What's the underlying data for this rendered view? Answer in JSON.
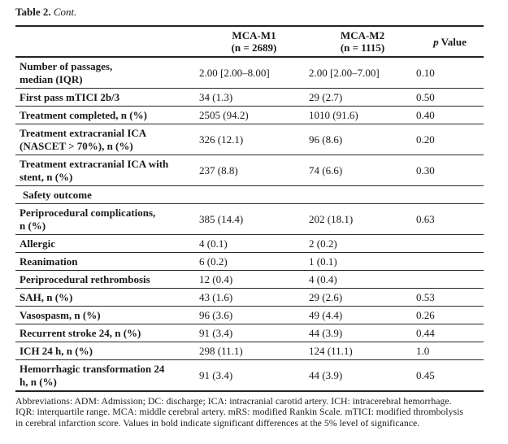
{
  "title": {
    "bold": "Table 2.",
    "italic": "Cont."
  },
  "colors": {
    "text": "#1a1a1a",
    "rule": "#232323",
    "background": "#ffffff"
  },
  "table": {
    "columns": {
      "label": "",
      "m1": "MCA-M1\n(n = 2689)",
      "m2": "MCA-M2\n(n = 1115)",
      "p_italic": "p",
      "p_rest": " Value"
    },
    "rows": [
      {
        "label": "Number of passages,\nmedian (IQR)",
        "m1": "2.00 [2.00–8.00]",
        "m2": "2.00 [2.00–7.00]",
        "p": "0.10"
      },
      {
        "label": "First pass mTICI 2b/3",
        "m1": "34 (1.3)",
        "m2": "29 (2.7)",
        "p": "0.50"
      },
      {
        "label": "Treatment completed, n (%)",
        "m1": "2505 (94.2)",
        "m2": "1010 (91.6)",
        "p": "0.40"
      },
      {
        "label": "Treatment extracranial ICA\n(NASCET > 70%), n (%)",
        "m1": "326 (12.1)",
        "m2": "96 (8.6)",
        "p": "0.20"
      },
      {
        "label": "Treatment extracranial ICA with\nstent, n (%)",
        "m1": "237 (8.8)",
        "m2": "74 (6.6)",
        "p": "0.30"
      },
      {
        "label": "Safety outcome",
        "m1": "",
        "m2": "",
        "p": "",
        "section": true
      },
      {
        "label": "Periprocedural complications,\nn (%)",
        "m1": "385 (14.4)",
        "m2": "202 (18.1)",
        "p": "0.63"
      },
      {
        "label": "Allergic",
        "m1": "4 (0.1)",
        "m2": "2 (0.2)",
        "p": ""
      },
      {
        "label": "Reanimation",
        "m1": "6 (0.2)",
        "m2": "1 (0.1)",
        "p": ""
      },
      {
        "label": "Periprocedural rethrombosis",
        "m1": "12 (0.4)",
        "m2": "4 (0.4)",
        "p": ""
      },
      {
        "label": "SAH, n (%)",
        "m1": "43 (1.6)",
        "m2": "29 (2.6)",
        "p": "0.53"
      },
      {
        "label": "Vasospasm, n (%)",
        "m1": "96 (3.6)",
        "m2": "49 (4.4)",
        "p": "0.26"
      },
      {
        "label": "Recurrent stroke 24, n (%)",
        "m1": "91 (3.4)",
        "m2": "44 (3.9)",
        "p": "0.44"
      },
      {
        "label": "ICH 24 h, n (%)",
        "m1": "298 (11.1)",
        "m2": "124 (11.1)",
        "p": "1.0"
      },
      {
        "label": "Hemorrhagic transformation 24\nh, n (%)",
        "m1": "91 (3.4)",
        "m2": "44 (3.9)",
        "p": "0.45"
      }
    ]
  },
  "footnote": "Abbreviations: ADM: Admission; DC: discharge; ICA: intracranial carotid artery. ICH: intracerebral hemorrhage.\nIQR: interquartile range. MCA: middle cerebral artery. mRS: modified Rankin Scale. mTICI: modified thrombolysis\nin cerebral infarction score. Values in bold indicate significant differences at the 5% level of significance."
}
